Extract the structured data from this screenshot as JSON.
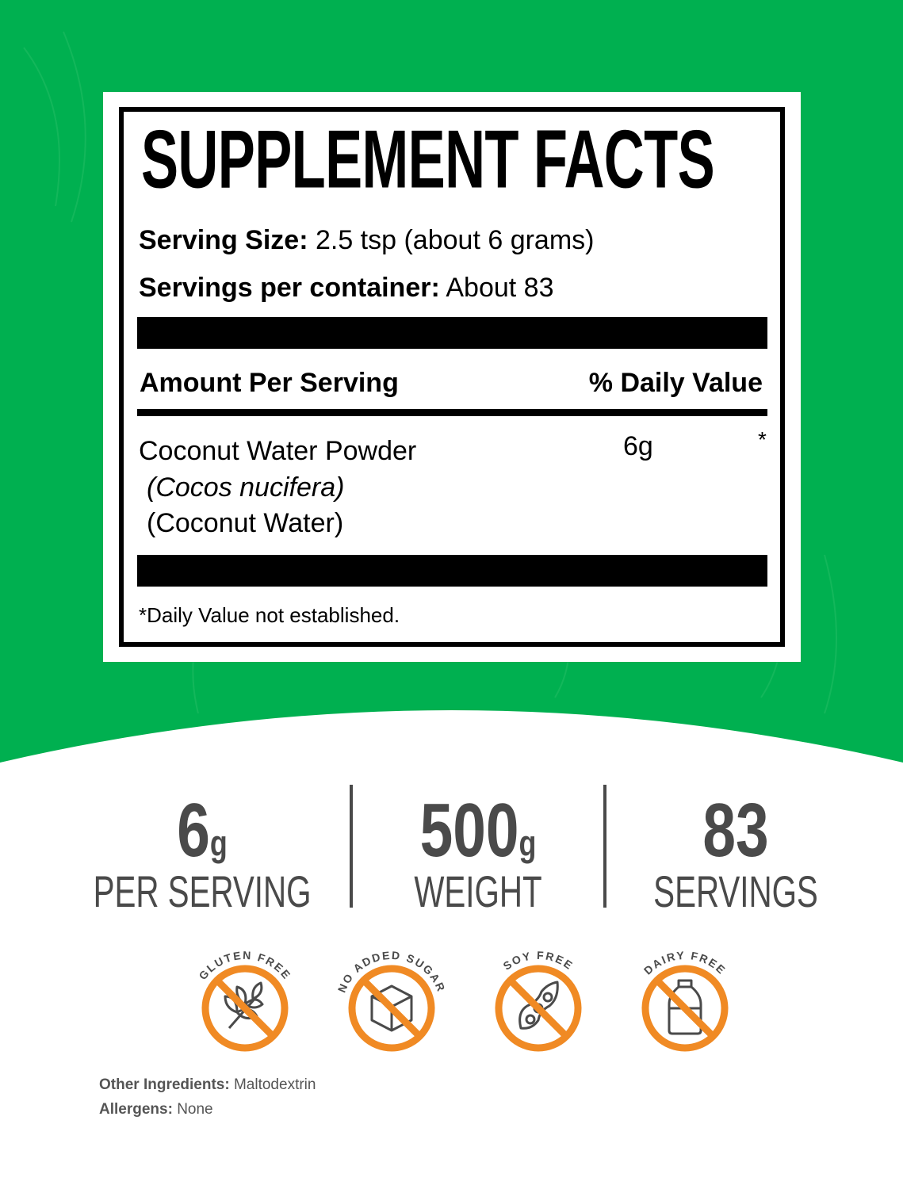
{
  "colors": {
    "green": "#00b050",
    "orange": "#f08a24",
    "gray": "#4a4a4a"
  },
  "facts": {
    "title": "SUPPLEMENT FACTS",
    "serving_size_label": "Serving Size:",
    "serving_size_value": "2.5 tsp (about 6 grams)",
    "servings_label": "Servings per container:",
    "servings_value": "About 83",
    "amount_header": "Amount Per Serving",
    "dv_header": "% Daily Value",
    "ingredient": {
      "name": "Coconut Water Powder",
      "latin": "(Cocos nucifera)",
      "part": "(Coconut Water)",
      "amount": "6g",
      "dv": "*"
    },
    "footnote": "*Daily Value not established."
  },
  "stats": [
    {
      "value": "6",
      "unit": "g",
      "label": "PER SERVING"
    },
    {
      "value": "500",
      "unit": "g",
      "label": "WEIGHT"
    },
    {
      "value": "83",
      "unit": "",
      "label": "SERVINGS"
    }
  ],
  "badges": [
    {
      "label": "GLUTEN FREE",
      "icon": "wheat-icon"
    },
    {
      "label": "NO ADDED SUGAR",
      "icon": "sugar-cube-icon"
    },
    {
      "label": "SOY FREE",
      "icon": "soybean-icon"
    },
    {
      "label": "DAIRY FREE",
      "icon": "milk-bottle-icon"
    }
  ],
  "other_ingredients": {
    "label": "Other Ingredients:",
    "value": "Maltodextrin"
  },
  "allergens": {
    "label": "Allergens:",
    "value": "None"
  }
}
